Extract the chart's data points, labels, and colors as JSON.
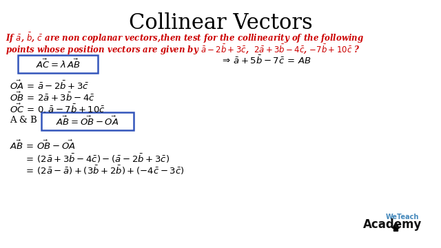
{
  "title": "Collinear Vectors",
  "title_fontsize": 22,
  "bg_color": "#ffffff",
  "red_color": "#cc0000",
  "black_color": "#000000",
  "box_edge_color": "#3355bb",
  "line1": "If $\\bar{a}$, $\\bar{b}$, $\\bar{c}$ are non coplanar vectors,then test for the collinearity of the following",
  "line2": "points whose position vectors are given by $\\bar{a}-2\\bar{b}+3\\bar{c}$,  $2\\bar{a}+3\\bar{b}-4\\bar{c}$, $-7\\bar{b}+10\\bar{c}$ ?",
  "box1_text": "$\\vec{AC} = \\lambda\\,\\vec{AB}$",
  "rhs_text": "$\\Rightarrow\\, \\bar{a}+5\\bar{b}-7\\bar{c}\\, =\\, AB$",
  "oa_text": "$\\vec{OA}\\, =\\, \\bar{a}-2\\bar{b}+3\\bar{c}$",
  "ob_text": "$\\vec{OB}\\, =\\, 2\\bar{a}+3\\bar{b}-4\\bar{c}$",
  "oc_text": "$\\vec{OC}\\, =\\, 0.\\bar{a}-7\\bar{b}+10\\bar{c}$",
  "agb_label": "A & B",
  "box2_text": "$\\vec{AB} = \\vec{OB}-\\vec{OA}$",
  "ab_line1": "$\\vec{AB}\\, =\\, \\vec{OB}-\\vec{OA}$",
  "ab_line2": "$=\\, (2\\bar{a}+3\\bar{b}-4\\bar{c})-(\\bar{a}-2\\bar{b}+3\\bar{c})$",
  "ab_line3": "$=\\, (2\\bar{a}-\\bar{a})+(3\\bar{b}+2\\bar{b})+(-4\\bar{c}-3\\bar{c})$",
  "logo_wt": "WeTeach",
  "logo_ac": "Academy",
  "body_fontsize": 9.5,
  "small_fontsize": 8.5
}
